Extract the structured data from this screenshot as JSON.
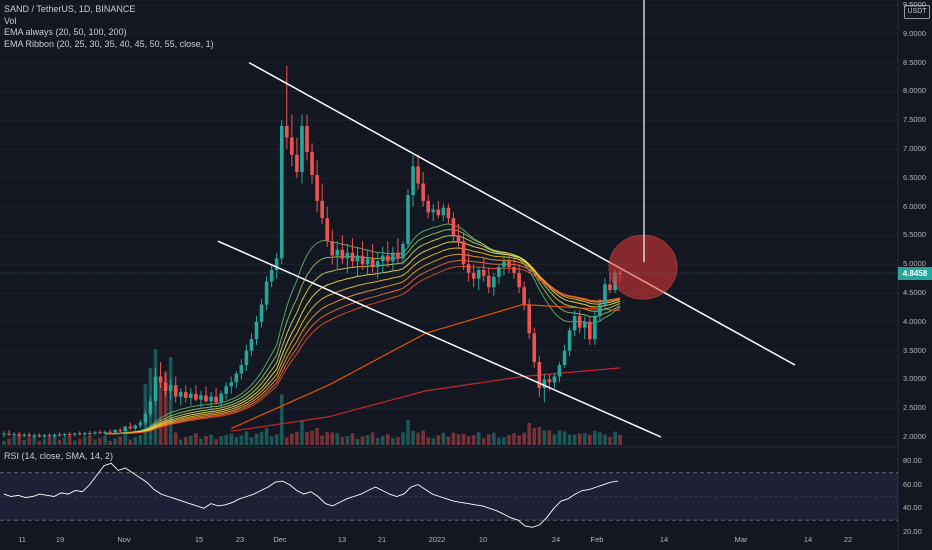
{
  "header": {
    "symbol_line": "SAND / TetherUS, 1D, BINANCE",
    "vol_line": "Vol",
    "ema_line": "EMA always (20, 50, 100, 200)",
    "ribbon_line": "EMA Ribbon (20, 25, 30, 35, 40, 45, 50, 55, close, 1)",
    "unit_badge": "USDT"
  },
  "rsi_panel": {
    "label": "RSI (14, close, SMA, 14, 2)",
    "ticks": [
      "80.00",
      "60.00",
      "40.00",
      "20.00"
    ]
  },
  "price_tag": "4.8458",
  "colors": {
    "background": "#131722",
    "up": "#26a69a",
    "down": "#ef5350",
    "trendline": "#ffffff",
    "ema200": "#c62828",
    "ema100": "#e65100",
    "rsi_line": "#ffffff",
    "rsi_band": "#7e57c2",
    "circle_highlight": "#e53935"
  },
  "chart_data": {
    "type": "candlestick",
    "y_axis": {
      "ticks": [
        "9.5000",
        "9.0000",
        "8.5000",
        "8.0000",
        "7.5000",
        "7.0000",
        "6.5000",
        "6.0000",
        "5.5000",
        "5.0000",
        "4.5000",
        "4.0000",
        "3.5000",
        "3.0000",
        "2.5000",
        "2.0000"
      ],
      "range": [
        1.9,
        9.5
      ]
    },
    "x_axis": {
      "ticks": [
        "11",
        "19",
        "Nov",
        "15",
        "23",
        "Dec",
        "13",
        "21",
        "2022",
        "10",
        "24",
        "Feb",
        "14",
        "Mar",
        "14",
        "22"
      ]
    },
    "last_price": 4.8458,
    "candles_ohlc": [
      [
        2.05,
        2.1,
        2.0,
        2.06
      ],
      [
        2.06,
        2.12,
        2.02,
        2.04
      ],
      [
        2.04,
        2.08,
        2.0,
        2.05
      ],
      [
        2.05,
        2.09,
        2.01,
        2.03
      ],
      [
        2.03,
        2.07,
        1.99,
        2.04
      ],
      [
        2.04,
        2.08,
        2.0,
        2.02
      ],
      [
        2.02,
        2.06,
        1.98,
        2.03
      ],
      [
        2.03,
        2.07,
        1.99,
        2.01
      ],
      [
        2.01,
        2.05,
        1.98,
        2.03
      ],
      [
        2.03,
        2.07,
        2.0,
        2.02
      ],
      [
        2.02,
        2.06,
        1.99,
        2.04
      ],
      [
        2.04,
        2.08,
        2.01,
        2.03
      ],
      [
        2.03,
        2.07,
        2.0,
        2.05
      ],
      [
        2.05,
        2.09,
        2.02,
        2.04
      ],
      [
        2.04,
        2.08,
        2.01,
        2.06
      ],
      [
        2.06,
        2.1,
        2.03,
        2.05
      ],
      [
        2.05,
        2.09,
        2.02,
        2.07
      ],
      [
        2.07,
        2.11,
        2.04,
        2.06
      ],
      [
        2.06,
        2.1,
        2.03,
        2.08
      ],
      [
        2.08,
        2.12,
        2.05,
        2.07
      ],
      [
        2.07,
        2.11,
        2.04,
        2.09
      ],
      [
        2.09,
        2.13,
        2.06,
        2.08
      ],
      [
        2.08,
        2.14,
        2.05,
        2.12
      ],
      [
        2.12,
        2.16,
        2.08,
        2.1
      ],
      [
        2.1,
        2.2,
        2.08,
        2.18
      ],
      [
        2.18,
        2.25,
        2.12,
        2.15
      ],
      [
        2.15,
        2.22,
        2.1,
        2.2
      ],
      [
        2.2,
        2.3,
        2.15,
        2.25
      ],
      [
        2.25,
        2.45,
        2.2,
        2.4
      ],
      [
        2.4,
        2.7,
        2.35,
        2.62
      ],
      [
        2.62,
        3.2,
        2.55,
        3.05
      ],
      [
        3.05,
        3.3,
        2.85,
        2.95
      ],
      [
        2.95,
        3.1,
        2.7,
        2.8
      ],
      [
        2.8,
        3.0,
        2.65,
        2.9
      ],
      [
        2.9,
        3.05,
        2.6,
        2.7
      ],
      [
        2.7,
        2.85,
        2.55,
        2.78
      ],
      [
        2.78,
        2.9,
        2.6,
        2.68
      ],
      [
        2.68,
        2.85,
        2.55,
        2.75
      ],
      [
        2.75,
        2.9,
        2.62,
        2.65
      ],
      [
        2.65,
        2.8,
        2.52,
        2.72
      ],
      [
        2.72,
        2.88,
        2.6,
        2.62
      ],
      [
        2.62,
        2.78,
        2.5,
        2.7
      ],
      [
        2.7,
        2.85,
        2.58,
        2.6
      ],
      [
        2.6,
        2.8,
        2.5,
        2.75
      ],
      [
        2.75,
        2.95,
        2.65,
        2.88
      ],
      [
        2.88,
        3.05,
        2.75,
        2.95
      ],
      [
        2.95,
        3.15,
        2.85,
        3.1
      ],
      [
        3.1,
        3.35,
        3.0,
        3.25
      ],
      [
        3.25,
        3.6,
        3.15,
        3.5
      ],
      [
        3.5,
        3.8,
        3.4,
        3.7
      ],
      [
        3.7,
        4.1,
        3.6,
        4.0
      ],
      [
        4.0,
        4.4,
        3.9,
        4.3
      ],
      [
        4.3,
        4.8,
        4.2,
        4.7
      ],
      [
        4.7,
        5.0,
        4.6,
        4.9
      ],
      [
        4.9,
        5.2,
        4.75,
        5.1
      ],
      [
        5.1,
        7.5,
        5.0,
        7.4
      ],
      [
        7.4,
        8.45,
        7.0,
        7.2
      ],
      [
        7.2,
        7.6,
        6.7,
        6.9
      ],
      [
        6.9,
        7.2,
        6.5,
        6.6
      ],
      [
        6.6,
        7.6,
        6.4,
        7.4
      ],
      [
        7.4,
        7.6,
        6.8,
        6.95
      ],
      [
        6.95,
        7.1,
        6.4,
        6.55
      ],
      [
        6.55,
        6.8,
        5.9,
        6.1
      ],
      [
        6.1,
        6.4,
        5.7,
        5.8
      ],
      [
        5.8,
        6.0,
        5.3,
        5.4
      ],
      [
        5.4,
        5.6,
        5.0,
        5.15
      ],
      [
        5.15,
        5.4,
        4.9,
        5.25
      ],
      [
        5.25,
        5.5,
        5.0,
        5.1
      ],
      [
        5.1,
        5.35,
        4.85,
        5.2
      ],
      [
        5.2,
        5.45,
        4.95,
        5.05
      ],
      [
        5.05,
        5.3,
        4.8,
        5.15
      ],
      [
        5.15,
        5.4,
        4.9,
        5.0
      ],
      [
        5.0,
        5.25,
        4.8,
        5.1
      ],
      [
        5.1,
        5.35,
        4.85,
        4.95
      ],
      [
        4.95,
        5.2,
        4.75,
        5.05
      ],
      [
        5.05,
        5.3,
        4.85,
        5.15
      ],
      [
        5.15,
        5.4,
        4.95,
        5.05
      ],
      [
        5.05,
        5.3,
        4.9,
        5.2
      ],
      [
        5.2,
        5.45,
        5.0,
        5.1
      ],
      [
        5.1,
        5.4,
        5.0,
        5.35
      ],
      [
        5.35,
        6.3,
        5.3,
        6.2
      ],
      [
        6.2,
        6.9,
        6.0,
        6.7
      ],
      [
        6.7,
        6.9,
        6.3,
        6.4
      ],
      [
        6.4,
        6.6,
        6.0,
        6.1
      ],
      [
        6.1,
        6.2,
        5.8,
        5.9
      ],
      [
        5.9,
        6.05,
        5.75,
        5.95
      ],
      [
        5.95,
        6.1,
        5.8,
        5.85
      ],
      [
        5.85,
        6.05,
        5.75,
        5.98
      ],
      [
        5.98,
        6.05,
        5.7,
        5.8
      ],
      [
        5.8,
        5.9,
        5.4,
        5.5
      ],
      [
        5.5,
        5.7,
        5.3,
        5.4
      ],
      [
        5.4,
        5.55,
        4.9,
        5.0
      ],
      [
        5.0,
        5.2,
        4.7,
        4.85
      ],
      [
        4.85,
        5.0,
        4.6,
        4.75
      ],
      [
        4.75,
        4.95,
        4.55,
        4.9
      ],
      [
        4.9,
        5.1,
        4.7,
        4.8
      ],
      [
        4.8,
        4.95,
        4.5,
        4.6
      ],
      [
        4.6,
        4.85,
        4.45,
        4.78
      ],
      [
        4.78,
        5.0,
        4.65,
        4.95
      ],
      [
        4.95,
        5.15,
        4.8,
        5.05
      ],
      [
        5.05,
        5.2,
        4.85,
        4.95
      ],
      [
        4.95,
        5.1,
        4.75,
        4.85
      ],
      [
        4.85,
        5.0,
        4.5,
        4.6
      ],
      [
        4.6,
        4.7,
        4.2,
        4.3
      ],
      [
        4.3,
        4.4,
        3.7,
        3.8
      ],
      [
        3.8,
        3.9,
        3.2,
        3.3
      ],
      [
        3.3,
        3.4,
        2.7,
        2.85
      ],
      [
        2.85,
        3.1,
        2.6,
        3.0
      ],
      [
        3.0,
        3.1,
        2.8,
        2.95
      ],
      [
        2.95,
        3.1,
        2.85,
        3.05
      ],
      [
        3.05,
        3.3,
        2.95,
        3.25
      ],
      [
        3.25,
        3.6,
        3.2,
        3.5
      ],
      [
        3.5,
        3.9,
        3.4,
        3.85
      ],
      [
        3.85,
        4.2,
        3.75,
        4.1
      ],
      [
        4.1,
        4.2,
        3.8,
        3.9
      ],
      [
        3.9,
        4.1,
        3.7,
        4.0
      ],
      [
        4.0,
        4.1,
        3.6,
        3.7
      ],
      [
        3.7,
        4.2,
        3.6,
        4.1
      ],
      [
        4.1,
        4.4,
        4.0,
        4.3
      ],
      [
        4.3,
        4.75,
        4.2,
        4.65
      ],
      [
        4.65,
        4.85,
        4.5,
        4.55
      ],
      [
        4.55,
        4.9,
        4.5,
        4.85
      ],
      [
        4.85,
        4.9,
        4.7,
        4.8458
      ]
    ],
    "overlays": {
      "ema200_values": [
        2.1,
        2.35,
        2.8,
        3.05,
        3.2
      ],
      "ema100_values": [
        2.15,
        2.9,
        3.8,
        4.3,
        4.2
      ],
      "ribbon_periods": [
        20,
        25,
        30,
        35,
        40,
        45,
        50,
        55
      ]
    },
    "trendlines": [
      {
        "from": {
          "date": "Nov 27",
          "price": 8.5
        },
        "to": {
          "date": "Feb 26",
          "price": 3.25
        }
      },
      {
        "from": {
          "date": "Nov 21",
          "price": 5.4
        },
        "to": {
          "date": "Feb 18",
          "price": 2.0
        }
      }
    ],
    "highlight_circle": {
      "date": "Feb 13",
      "price": 4.95
    },
    "vertical_line": {
      "date": "Feb 14"
    },
    "rsi": {
      "range": [
        20,
        85
      ],
      "bands": [
        70,
        30
      ],
      "values": [
        52,
        50,
        51,
        49,
        50,
        52,
        51,
        50,
        53,
        52,
        55,
        54,
        60,
        68,
        76,
        78,
        72,
        74,
        70,
        66,
        62,
        56,
        52,
        50,
        48,
        46,
        44,
        42,
        40,
        44,
        42,
        43,
        45,
        48,
        50,
        52,
        55,
        58,
        62,
        63,
        60,
        55,
        52,
        54,
        50,
        44,
        42,
        45,
        48,
        50,
        52,
        55,
        58,
        55,
        52,
        50,
        52,
        58,
        60,
        56,
        52,
        50,
        48,
        46,
        45,
        44,
        43,
        42,
        40,
        38,
        35,
        32,
        30,
        25,
        24,
        26,
        32,
        40,
        46,
        48,
        52,
        55,
        56,
        58,
        60,
        62,
        63
      ]
    }
  }
}
